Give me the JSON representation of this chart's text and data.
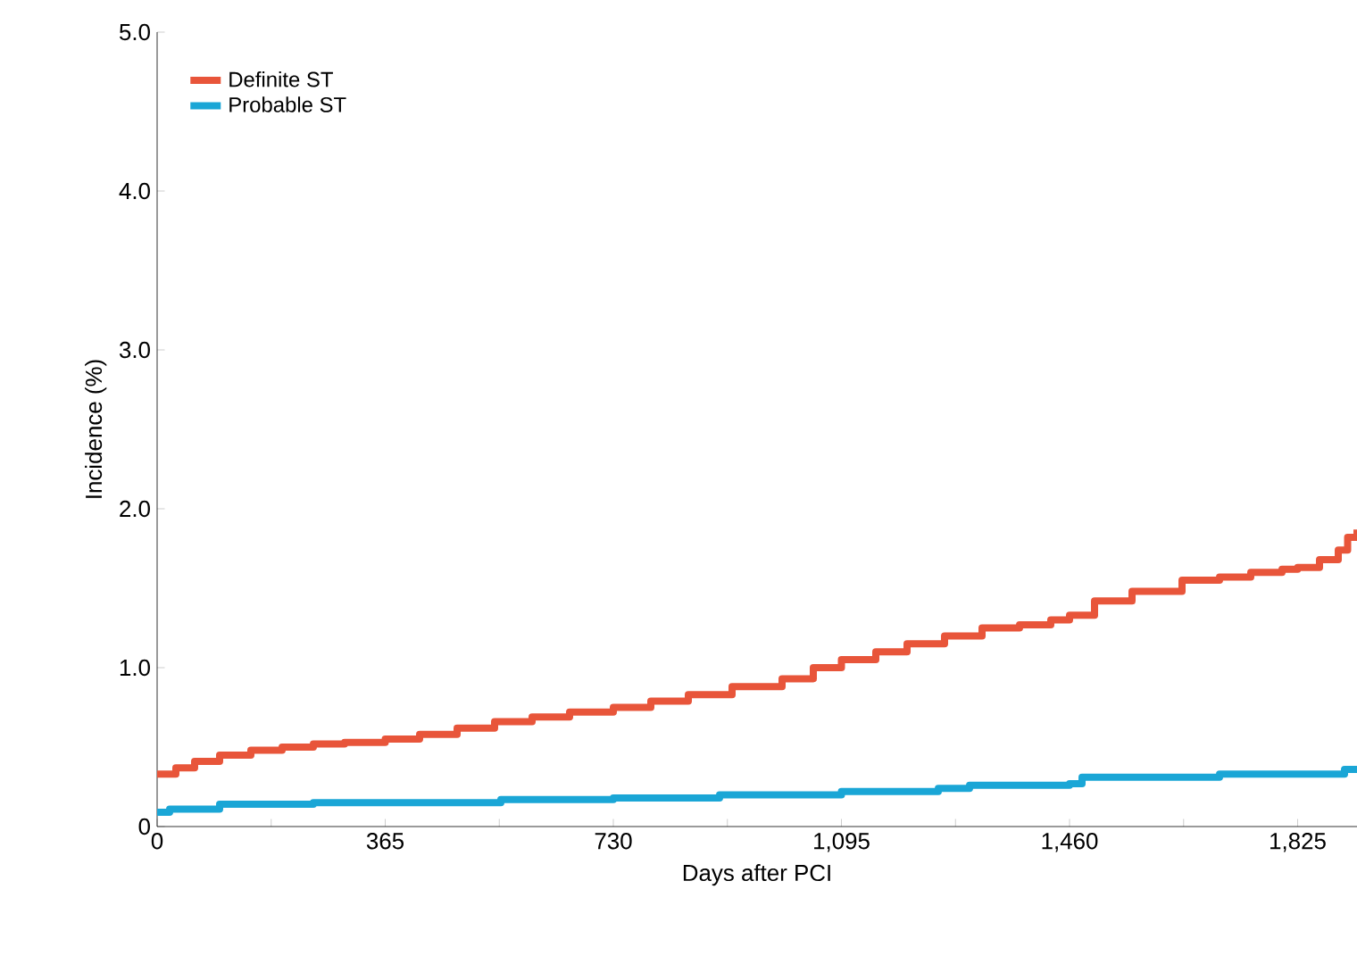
{
  "chart_data": {
    "type": "step",
    "xlabel": "Days after PCI",
    "ylabel": "Incidence (%)",
    "xlim": [
      0,
      1920
    ],
    "ylim": [
      0,
      5.0
    ],
    "xticks": [
      0,
      {
        "value": 182.5,
        "label": null
      },
      365,
      {
        "value": 547.5,
        "label": null
      },
      730,
      {
        "value": 912.5,
        "label": null
      },
      {
        "value": 1095,
        "label": "1,095"
      },
      {
        "value": 1277.5,
        "label": null
      },
      {
        "value": 1460,
        "label": "1,460"
      },
      {
        "value": 1642.5,
        "label": null
      },
      {
        "value": 1825,
        "label": "1,825"
      }
    ],
    "yticks": [
      {
        "value": 0,
        "label": "0"
      },
      {
        "value": 1,
        "label": "1.0"
      },
      {
        "value": 2,
        "label": "2.0"
      },
      {
        "value": 3,
        "label": "3.0"
      },
      {
        "value": 4,
        "label": "4.0"
      },
      {
        "value": 5,
        "label": "5.0"
      }
    ],
    "legend": "top left",
    "grid": false,
    "series": [
      {
        "name": "Definite ST",
        "color": "#e8553a",
        "x": [
          0,
          30,
          60,
          100,
          150,
          200,
          250,
          300,
          365,
          420,
          480,
          540,
          600,
          660,
          730,
          790,
          850,
          920,
          1000,
          1050,
          1095,
          1150,
          1200,
          1260,
          1320,
          1380,
          1430,
          1460,
          1500,
          1560,
          1640,
          1700,
          1750,
          1800,
          1825,
          1860,
          1890,
          1905,
          1920
        ],
        "values": [
          0.33,
          0.37,
          0.41,
          0.45,
          0.48,
          0.5,
          0.52,
          0.53,
          0.55,
          0.58,
          0.62,
          0.66,
          0.69,
          0.72,
          0.75,
          0.79,
          0.83,
          0.88,
          0.93,
          1.0,
          1.05,
          1.1,
          1.15,
          1.2,
          1.25,
          1.27,
          1.3,
          1.33,
          1.42,
          1.48,
          1.55,
          1.57,
          1.6,
          1.62,
          1.63,
          1.68,
          1.74,
          1.82,
          1.87
        ]
      },
      {
        "name": "Probable ST",
        "color": "#1aa6d6",
        "x": [
          0,
          20,
          100,
          250,
          365,
          550,
          730,
          900,
          1095,
          1250,
          1300,
          1460,
          1480,
          1700,
          1825,
          1900,
          1920
        ],
        "values": [
          0.09,
          0.11,
          0.14,
          0.15,
          0.15,
          0.17,
          0.18,
          0.2,
          0.22,
          0.24,
          0.26,
          0.27,
          0.31,
          0.33,
          0.33,
          0.36,
          0.37
        ]
      }
    ]
  }
}
